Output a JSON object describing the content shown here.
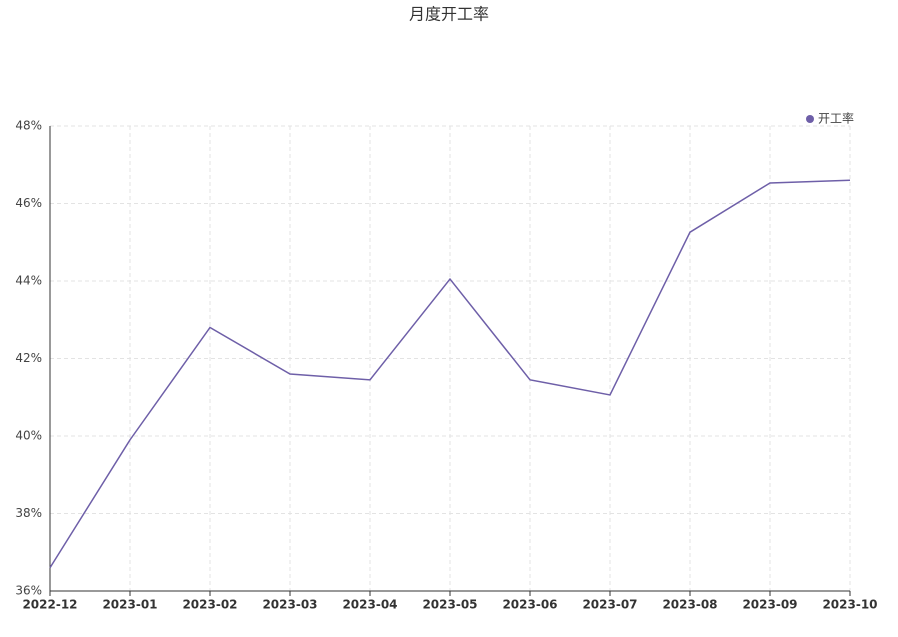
{
  "chart_data": {
    "type": "line",
    "title": "月度开工率",
    "categories": [
      "2022-12",
      "2023-01",
      "2023-02",
      "2023-03",
      "2023-04",
      "2023-05",
      "2023-06",
      "2023-07",
      "2023-08",
      "2023-09",
      "2023-10"
    ],
    "series": [
      {
        "name": "开工率",
        "color": "#6e5fa8",
        "values": [
          36.6,
          39.9,
          42.8,
          41.6,
          41.45,
          44.05,
          41.45,
          41.06,
          45.26,
          46.53,
          46.6
        ]
      }
    ],
    "ylim": [
      36,
      48
    ],
    "yticks": [
      {
        "value": 36,
        "label": "36%"
      },
      {
        "value": 38,
        "label": "38%"
      },
      {
        "value": 40,
        "label": "40%"
      },
      {
        "value": 42,
        "label": "42%"
      },
      {
        "value": 44,
        "label": "44%"
      },
      {
        "value": 46,
        "label": "46%"
      },
      {
        "value": 48,
        "label": "48%"
      }
    ],
    "grid": true,
    "legend": "top-right"
  }
}
